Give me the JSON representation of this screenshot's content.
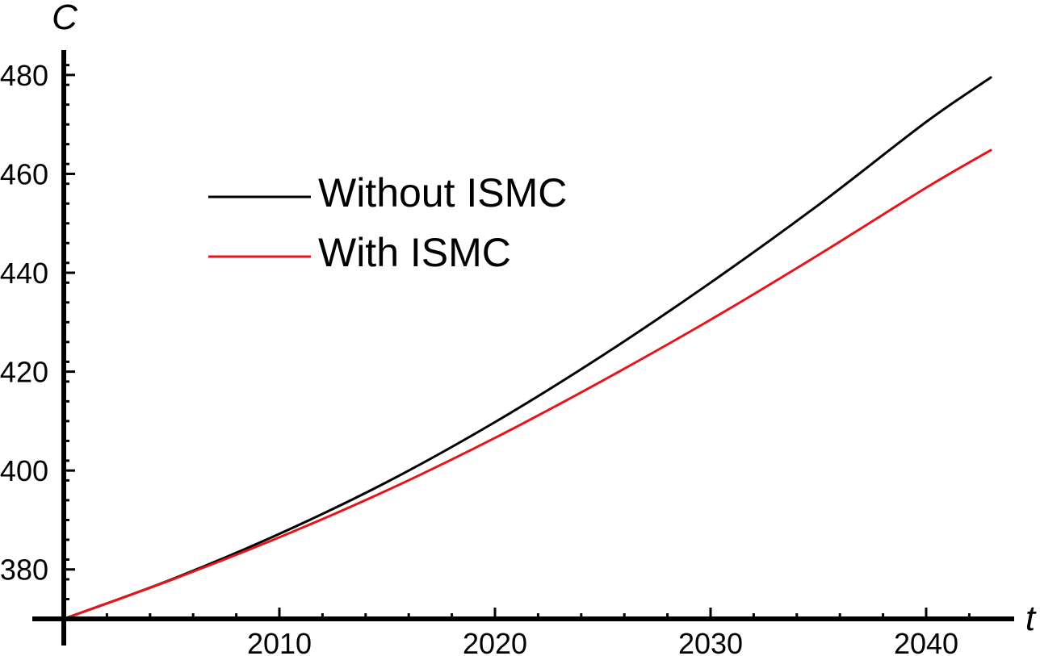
{
  "chart_data": {
    "type": "line",
    "title": "",
    "xlabel": "t",
    "ylabel": "C",
    "xlim": [
      2000,
      2043
    ],
    "ylim": [
      370,
      485
    ],
    "x_ticks": [
      2010,
      2020,
      2030,
      2040
    ],
    "y_ticks": [
      380,
      400,
      420,
      440,
      460,
      480
    ],
    "x_tick_labels": [
      "2010",
      "2020",
      "2030",
      "2040"
    ],
    "y_tick_labels": [
      "380",
      "400",
      "420",
      "440",
      "460",
      "480"
    ],
    "grid": false,
    "legend_position": "upper-left",
    "x": [
      2000,
      2005,
      2010,
      2015,
      2020,
      2025,
      2030,
      2035,
      2040,
      2043
    ],
    "series": [
      {
        "name": "Without ISMC",
        "color": "#000000",
        "values": [
          370.0,
          378.0,
          387.2,
          397.7,
          409.8,
          423.3,
          438.0,
          453.7,
          470.5,
          479.5
        ]
      },
      {
        "name": "With ISMC",
        "color": "#e8141b",
        "values": [
          370.0,
          377.9,
          386.5,
          396.0,
          406.6,
          418.2,
          430.5,
          443.6,
          457.2,
          464.8
        ]
      }
    ]
  }
}
